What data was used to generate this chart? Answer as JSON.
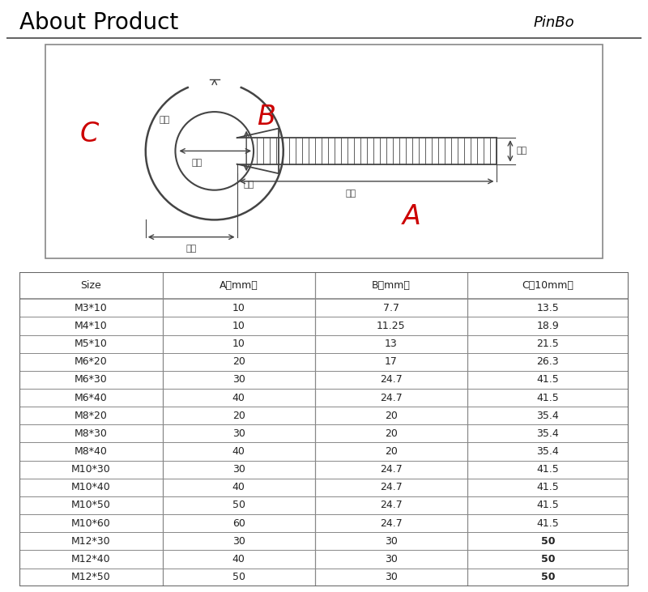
{
  "title": "About Product",
  "brand": "PinBo",
  "bg_color": "#ffffff",
  "title_color": "#000000",
  "brand_color": "#000000",
  "diagram_label_C": "C",
  "diagram_label_B": "B",
  "diagram_label_A": "A",
  "diagram_label_C_color": "#cc0000",
  "diagram_label_B_color": "#cc0000",
  "diagram_label_A_color": "#cc0000",
  "diagram_text_waidian": "外径",
  "diagram_text_neidian": "内径",
  "diagram_text_zhijing": "直径",
  "diagram_text_houduo": "厂度",
  "diagram_text_yachang": "牙长",
  "diagram_text_gaodu": "高度",
  "table_header": [
    "Size",
    "A（mm）",
    "B（mm）",
    "C（10mm）"
  ],
  "table_rows": [
    [
      "M3*10",
      "10",
      "7.7",
      "13.5"
    ],
    [
      "M4*10",
      "10",
      "11.25",
      "18.9"
    ],
    [
      "M5*10",
      "10",
      "13",
      "21.5"
    ],
    [
      "M6*20",
      "20",
      "17",
      "26.3"
    ],
    [
      "M6*30",
      "30",
      "24.7",
      "41.5"
    ],
    [
      "M6*40",
      "40",
      "24.7",
      "41.5"
    ],
    [
      "M8*20",
      "20",
      "20",
      "35.4"
    ],
    [
      "M8*30",
      "30",
      "20",
      "35.4"
    ],
    [
      "M8*40",
      "40",
      "20",
      "35.4"
    ],
    [
      "M10*30",
      "30",
      "24.7",
      "41.5"
    ],
    [
      "M10*40",
      "40",
      "24.7",
      "41.5"
    ],
    [
      "M10*50",
      "50",
      "24.7",
      "41.5"
    ],
    [
      "M10*60",
      "60",
      "24.7",
      "41.5"
    ],
    [
      "M12*30",
      "30",
      "30",
      "50"
    ],
    [
      "M12*40",
      "40",
      "30",
      "50"
    ],
    [
      "M12*50",
      "50",
      "30",
      "50"
    ]
  ],
  "bold_rows": [
    13,
    14,
    15
  ],
  "line_color": "#444444",
  "table_line_color": "#888888",
  "table_text_color": "#222222",
  "table_header_fontsize": 9,
  "table_data_fontsize": 9
}
